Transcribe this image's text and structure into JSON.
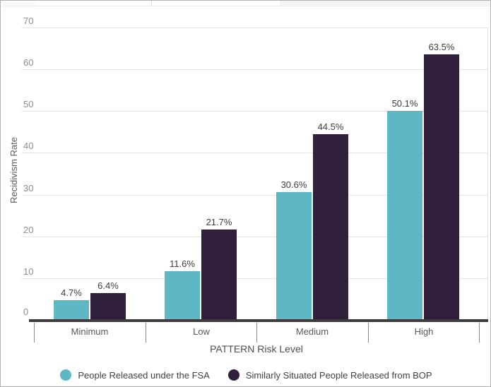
{
  "chart": {
    "y_axis_title": "Recidivism Rate",
    "x_axis_title": "PATTERN Risk Level"
  },
  "chart_data": {
    "type": "bar",
    "categories": [
      "Minimum",
      "Low",
      "Medium",
      "High"
    ],
    "series": [
      {
        "name": "People Released under the FSA",
        "values": [
          4.7,
          11.6,
          30.6,
          50.1
        ],
        "labels": [
          "4.7%",
          "11.6%",
          "30.6%",
          "50.1%"
        ],
        "color": "#5fb7c5",
        "marker": "circle-icon"
      },
      {
        "name": "Similarly Situated People Released from BOP",
        "values": [
          6.4,
          21.7,
          44.5,
          63.5
        ],
        "labels": [
          "6.4%",
          "21.7%",
          "44.5%",
          "63.5%"
        ],
        "color": "#31203c",
        "marker": "circle-icon"
      }
    ],
    "title": "",
    "xlabel": "PATTERN Risk Level",
    "ylabel": "Recidivism Rate",
    "ylim": [
      0,
      70
    ],
    "y_ticks": [
      0,
      10,
      20,
      30,
      40,
      50,
      60,
      70
    ],
    "grid": true,
    "legend_position": "bottom",
    "colors": {
      "gridline": "#e3e3e3",
      "axis_line": "#3d3d3d",
      "tick_label": "#8c8c8c"
    }
  }
}
